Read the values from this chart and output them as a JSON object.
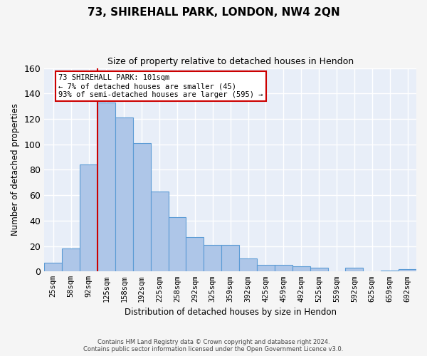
{
  "title": "73, SHIREHALL PARK, LONDON, NW4 2QN",
  "subtitle": "Size of property relative to detached houses in Hendon",
  "xlabel": "Distribution of detached houses by size in Hendon",
  "ylabel": "Number of detached properties",
  "categories": [
    "25sqm",
    "58sqm",
    "92sqm",
    "125sqm",
    "158sqm",
    "192sqm",
    "225sqm",
    "258sqm",
    "292sqm",
    "325sqm",
    "359sqm",
    "392sqm",
    "425sqm",
    "459sqm",
    "492sqm",
    "525sqm",
    "559sqm",
    "592sqm",
    "625sqm",
    "659sqm",
    "692sqm"
  ],
  "values": [
    7,
    18,
    84,
    133,
    121,
    101,
    63,
    43,
    27,
    21,
    21,
    10,
    5,
    5,
    4,
    3,
    0,
    3,
    0,
    1,
    2
  ],
  "bar_color": "#aec6e8",
  "bar_edge_color": "#5b9bd5",
  "background_color": "#e8eef8",
  "grid_color": "#ffffff",
  "vline_x_index": 2,
  "vline_color": "#cc0000",
  "annotation_text": "73 SHIREHALL PARK: 101sqm\n← 7% of detached houses are smaller (45)\n93% of semi-detached houses are larger (595) →",
  "annotation_box_color": "#ffffff",
  "annotation_box_edge": "#cc0000",
  "ylim": [
    0,
    160
  ],
  "yticks": [
    0,
    20,
    40,
    60,
    80,
    100,
    120,
    140,
    160
  ],
  "footer_line1": "Contains HM Land Registry data © Crown copyright and database right 2024.",
  "footer_line2": "Contains public sector information licensed under the Open Government Licence v3.0.",
  "fig_bg": "#f5f5f5"
}
